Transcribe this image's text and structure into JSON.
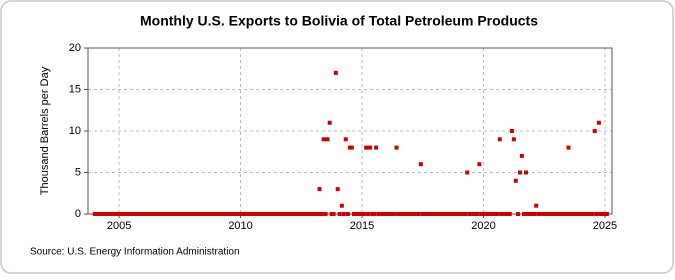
{
  "chart_data": {
    "type": "scatter",
    "title": "Monthly U.S. Exports to Bolivia of Total Petroleum Products",
    "y_label": "Thousand Barrels per Day",
    "source": "Source: U.S. Energy Information Administration",
    "xlim": [
      2003.72,
      2025.29
    ],
    "xticks": [
      2005,
      2010,
      2015,
      2020,
      2025
    ],
    "ylim": [
      0,
      20
    ],
    "yticks": [
      0,
      5,
      10,
      15,
      20
    ],
    "grid": true,
    "series": [
      {
        "color": "#cc0000",
        "x": [
          2004,
          2004.08,
          2004.17,
          2004.25,
          2004.33,
          2004.42,
          2004.5,
          2004.58,
          2004.67,
          2004.75,
          2004.83,
          2004.92,
          2005,
          2005.08,
          2005.17,
          2005.25,
          2005.33,
          2005.42,
          2005.5,
          2005.58,
          2005.67,
          2005.75,
          2005.83,
          2005.92,
          2006,
          2006.08,
          2006.17,
          2006.25,
          2006.33,
          2006.42,
          2006.5,
          2006.58,
          2006.67,
          2006.75,
          2006.83,
          2006.92,
          2007,
          2007.08,
          2007.17,
          2007.25,
          2007.33,
          2007.42,
          2007.5,
          2007.58,
          2007.67,
          2007.75,
          2007.83,
          2007.92,
          2008,
          2008.08,
          2008.17,
          2008.25,
          2008.33,
          2008.42,
          2008.5,
          2008.58,
          2008.67,
          2008.75,
          2008.83,
          2008.92,
          2009,
          2009.08,
          2009.17,
          2009.25,
          2009.33,
          2009.42,
          2009.5,
          2009.58,
          2009.67,
          2009.75,
          2009.83,
          2009.92,
          2010,
          2010.08,
          2010.17,
          2010.25,
          2010.33,
          2010.42,
          2010.5,
          2010.58,
          2010.67,
          2010.75,
          2010.83,
          2010.92,
          2011,
          2011.08,
          2011.17,
          2011.25,
          2011.33,
          2011.42,
          2011.5,
          2011.58,
          2011.67,
          2011.75,
          2011.83,
          2011.92,
          2012,
          2012.08,
          2012.17,
          2012.25,
          2012.33,
          2012.42,
          2012.5,
          2012.58,
          2012.67,
          2012.75,
          2012.83,
          2012.92,
          2013,
          2013.08,
          2013.17,
          2013.25,
          2013.33,
          2013.42,
          2013.5,
          2013.58,
          2013.67,
          2013.75,
          2013.83,
          2013.92,
          2014,
          2014.08,
          2014.17,
          2014.25,
          2014.33,
          2014.42,
          2014.5,
          2014.58,
          2014.67,
          2014.75,
          2014.83,
          2014.92,
          2015,
          2015.08,
          2015.17,
          2015.25,
          2015.33,
          2015.42,
          2015.5,
          2015.58,
          2015.67,
          2015.75,
          2015.83,
          2015.92,
          2016,
          2016.08,
          2016.17,
          2016.25,
          2016.33,
          2016.42,
          2016.5,
          2016.58,
          2016.67,
          2016.75,
          2016.83,
          2016.92,
          2017,
          2017.08,
          2017.17,
          2017.25,
          2017.33,
          2017.42,
          2017.5,
          2017.58,
          2017.67,
          2017.75,
          2017.83,
          2017.92,
          2018,
          2018.08,
          2018.17,
          2018.25,
          2018.33,
          2018.42,
          2018.5,
          2018.58,
          2018.67,
          2018.75,
          2018.83,
          2018.92,
          2019,
          2019.08,
          2019.17,
          2019.25,
          2019.33,
          2019.42,
          2019.5,
          2019.58,
          2019.67,
          2019.75,
          2019.83,
          2019.92,
          2020,
          2020.08,
          2020.17,
          2020.25,
          2020.33,
          2020.42,
          2020.5,
          2020.58,
          2020.67,
          2020.75,
          2020.83,
          2020.92,
          2021,
          2021.08,
          2021.17,
          2021.25,
          2021.33,
          2021.42,
          2021.5,
          2021.58,
          2021.67,
          2021.75,
          2021.83,
          2021.92,
          2022,
          2022.08,
          2022.17,
          2022.25,
          2022.33,
          2022.42,
          2022.5,
          2022.58,
          2022.67,
          2022.75,
          2022.83,
          2022.92,
          2023,
          2023.08,
          2023.17,
          2023.25,
          2023.33,
          2023.42,
          2023.5,
          2023.58,
          2023.67,
          2023.75,
          2023.83,
          2023.92,
          2024,
          2024.08,
          2024.17,
          2024.25,
          2024.33,
          2024.42,
          2024.5,
          2024.58,
          2024.67,
          2024.75,
          2024.83,
          2024.92,
          2025,
          2025.08
        ],
        "values": [
          0,
          0,
          0,
          0,
          0,
          0,
          0,
          0,
          0,
          0,
          0,
          0,
          0,
          0,
          0,
          0,
          0,
          0,
          0,
          0,
          0,
          0,
          0,
          0,
          0,
          0,
          0,
          0,
          0,
          0,
          0,
          0,
          0,
          0,
          0,
          0,
          0,
          0,
          0,
          0,
          0,
          0,
          0,
          0,
          0,
          0,
          0,
          0,
          0,
          0,
          0,
          0,
          0,
          0,
          0,
          0,
          0,
          0,
          0,
          0,
          0,
          0,
          0,
          0,
          0,
          0,
          0,
          0,
          0,
          0,
          0,
          0,
          0,
          0,
          0,
          0,
          0,
          0,
          0,
          0,
          0,
          0,
          0,
          0,
          0,
          0,
          0,
          0,
          0,
          0,
          0,
          0,
          0,
          0,
          0,
          0,
          0,
          0,
          0,
          0,
          0,
          0,
          0,
          0,
          0,
          0,
          0,
          0,
          0,
          0,
          0,
          3,
          0,
          9,
          0,
          9,
          11,
          0,
          0,
          17,
          3,
          0,
          1,
          0,
          9,
          0,
          8,
          8,
          0,
          0,
          0,
          0,
          0,
          0,
          8,
          0,
          8,
          0,
          0,
          8,
          0,
          0,
          0,
          0,
          0,
          0,
          0,
          0,
          0,
          8,
          0,
          0,
          0,
          0,
          0,
          0,
          0,
          0,
          0,
          0,
          0,
          6,
          0,
          0,
          0,
          0,
          0,
          0,
          0,
          0,
          0,
          0,
          0,
          0,
          0,
          0,
          0,
          0,
          0,
          0,
          0,
          0,
          0,
          0,
          5,
          0,
          0,
          0,
          0,
          0,
          6,
          0,
          0,
          0,
          0,
          0,
          0,
          0,
          0,
          0,
          9,
          0,
          0,
          0,
          0,
          0,
          10,
          9,
          4,
          0,
          5,
          7,
          0,
          5,
          0,
          0,
          0,
          0,
          1,
          0,
          0,
          0,
          0,
          0,
          0,
          0,
          0,
          0,
          0,
          0,
          0,
          0,
          0,
          0,
          8,
          0,
          0,
          0,
          0,
          0,
          0,
          0,
          0,
          0,
          0,
          0,
          0,
          10,
          0,
          11,
          0,
          0,
          0,
          0
        ]
      }
    ]
  }
}
